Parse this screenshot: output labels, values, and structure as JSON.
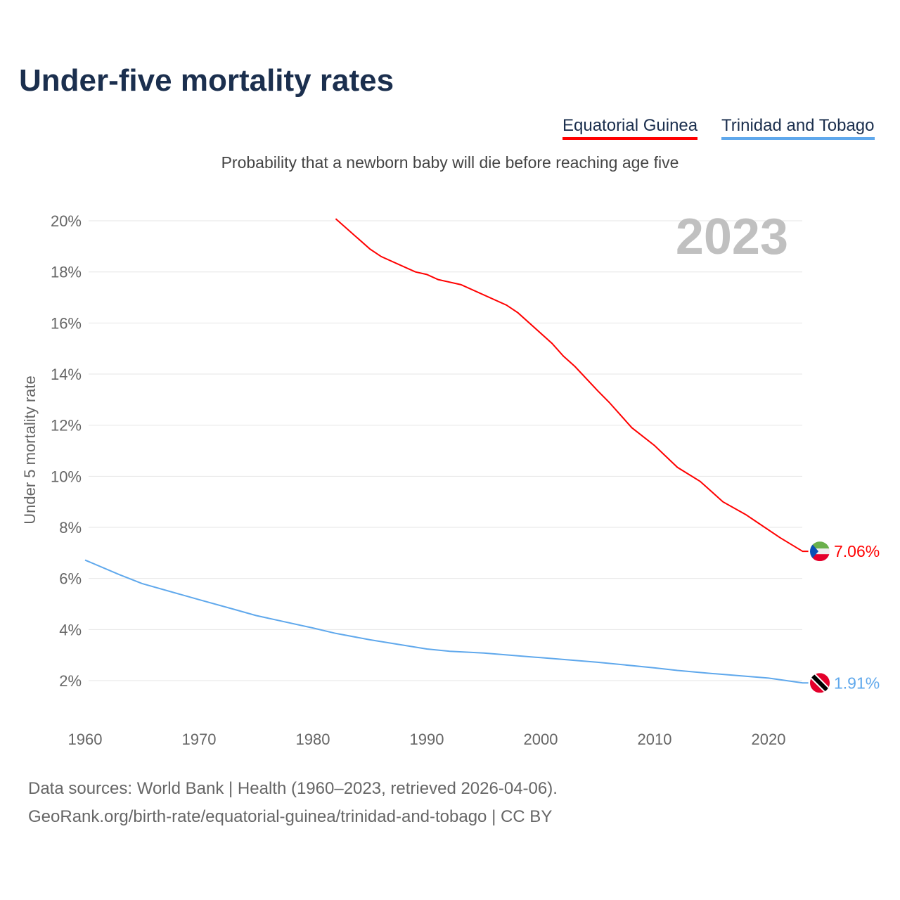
{
  "title": "Under-five mortality rates",
  "subtitle": "Probability that a newborn baby will die before reaching age five",
  "year_label": "2023",
  "sources": [
    "Data sources: World Bank | Health (1960–2023, retrieved 2026-04-06).",
    "GeoRank.org/birth-rate/equatorial-guinea/trinidad-and-tobago | CC BY"
  ],
  "chart_data": {
    "type": "line",
    "ylabel": "Under 5 mortality rate",
    "xlim": [
      1960,
      2023
    ],
    "ylim": [
      2,
      20
    ],
    "xticks": [
      1960,
      1970,
      1980,
      1990,
      2000,
      2010,
      2020
    ],
    "yticks": [
      2,
      4,
      6,
      8,
      10,
      12,
      14,
      16,
      18,
      20
    ],
    "ytick_labels": [
      "2%",
      "4%",
      "6%",
      "8%",
      "10%",
      "12%",
      "14%",
      "16%",
      "18%",
      "20%"
    ],
    "grid": true,
    "legend_position": "top-right",
    "series": [
      {
        "name": "Equatorial Guinea",
        "color": "#ff0000",
        "end_label": "7.06%",
        "flag": "equatorial-guinea-flag",
        "x": [
          1982,
          1985,
          1986,
          1989,
          1990,
          1991,
          1993,
          1997,
          1998,
          2001,
          2002,
          2003,
          2005,
          2006,
          2008,
          2010,
          2012,
          2014,
          2016,
          2018,
          2019,
          2021,
          2023
        ],
        "y": [
          20.08,
          18.9,
          18.6,
          18.0,
          17.9,
          17.7,
          17.5,
          16.7,
          16.4,
          15.2,
          14.7,
          14.3,
          13.35,
          12.9,
          11.9,
          11.2,
          10.35,
          9.8,
          9.0,
          8.5,
          8.2,
          7.6,
          7.06
        ]
      },
      {
        "name": "Trinidad and Tobago",
        "color": "#5fa8ec",
        "end_label": "1.91%",
        "flag": "trinidad-and-tobago-flag",
        "x": [
          1960,
          1963,
          1965,
          1970,
          1973,
          1975,
          1980,
          1982,
          1985,
          1990,
          1992,
          1995,
          2000,
          2005,
          2010,
          2012,
          2015,
          2020,
          2023
        ],
        "y": [
          6.72,
          6.15,
          5.8,
          5.17,
          4.8,
          4.55,
          4.06,
          3.85,
          3.6,
          3.24,
          3.15,
          3.08,
          2.9,
          2.72,
          2.5,
          2.4,
          2.28,
          2.1,
          1.91
        ]
      }
    ]
  }
}
